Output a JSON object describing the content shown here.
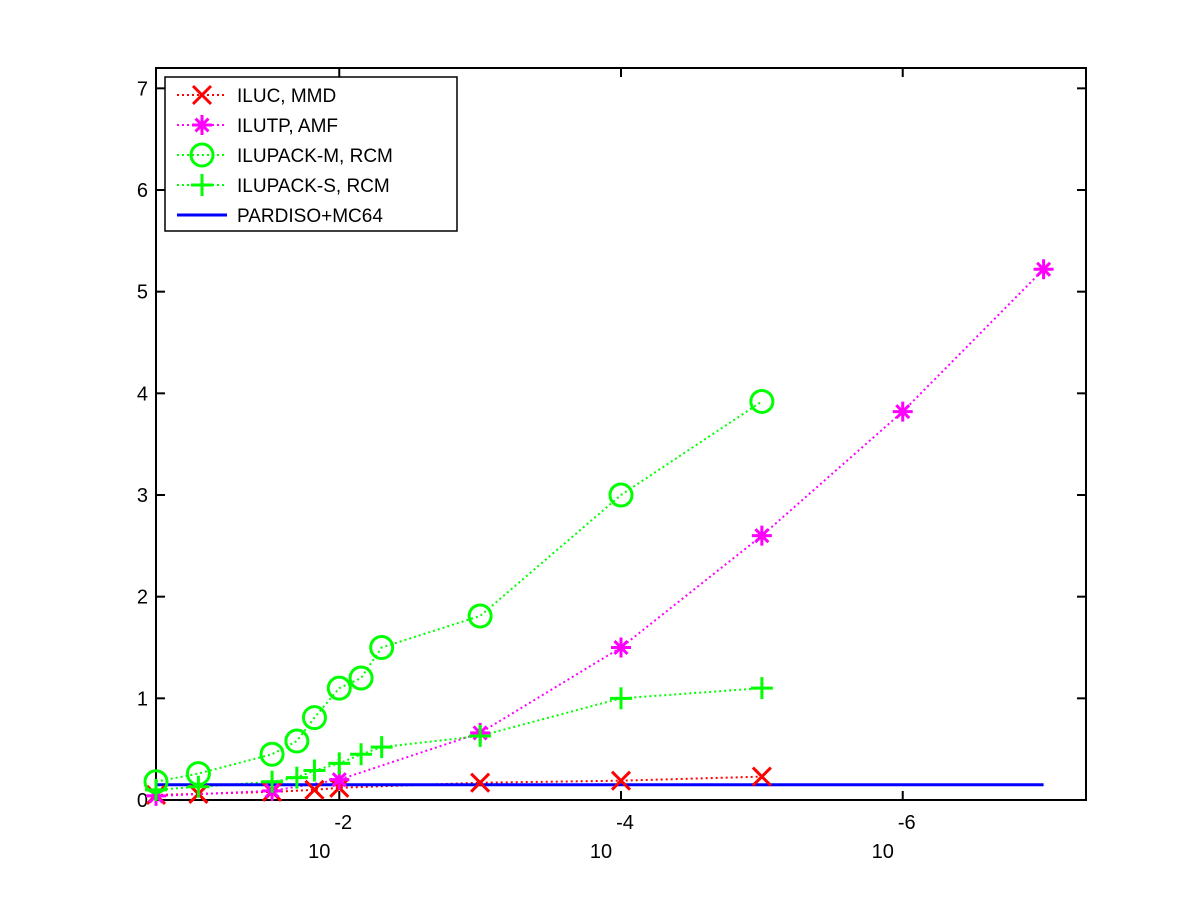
{
  "chart_data": {
    "type": "line",
    "title": "",
    "xlabel": "",
    "ylabel": "",
    "x_scale": "log",
    "x_reversed": true,
    "xlim": [
      0.2,
      5e-08
    ],
    "ylim": [
      0,
      7.2
    ],
    "grid": false,
    "legend_position": "top-left",
    "x_ticks": [
      {
        "value": 0.01,
        "base": "10",
        "exponent": "-2"
      },
      {
        "value": 0.0001,
        "base": "10",
        "exponent": "-4"
      },
      {
        "value": 1e-06,
        "base": "10",
        "exponent": "-6"
      }
    ],
    "y_ticks": [
      "0",
      "1",
      "2",
      "3",
      "4",
      "5",
      "6",
      "7"
    ],
    "series": [
      {
        "name": "ILUC, MMD",
        "color": "#ff0000",
        "marker": "x",
        "line_style": "dotted",
        "points": [
          [
            0.2,
            0.05
          ],
          [
            0.1,
            0.06
          ],
          [
            0.03,
            0.08
          ],
          [
            0.015,
            0.1
          ],
          [
            0.01,
            0.12
          ],
          [
            0.001,
            0.17
          ],
          [
            0.0001,
            0.19
          ],
          [
            1e-05,
            0.23
          ]
        ]
      },
      {
        "name": "ILUTP, AMF",
        "color": "#ff00ff",
        "marker": "asterisk",
        "line_style": "dotted",
        "points": [
          [
            0.2,
            0.04
          ],
          [
            0.03,
            0.09
          ],
          [
            0.01,
            0.2
          ],
          [
            0.001,
            0.66
          ],
          [
            0.0001,
            1.5
          ],
          [
            1e-05,
            2.6
          ],
          [
            1e-06,
            3.82
          ],
          [
            1e-07,
            5.22
          ]
        ]
      },
      {
        "name": "ILUPACK-M, RCM",
        "color": "#00ff00",
        "marker": "circle",
        "line_style": "dotted",
        "points": [
          [
            0.2,
            0.18
          ],
          [
            0.1,
            0.26
          ],
          [
            0.03,
            0.45
          ],
          [
            0.02,
            0.58
          ],
          [
            0.015,
            0.81
          ],
          [
            0.01,
            1.1
          ],
          [
            0.007,
            1.2
          ],
          [
            0.005,
            1.5
          ],
          [
            0.001,
            1.81
          ],
          [
            0.0001,
            3.0
          ],
          [
            1e-05,
            3.92
          ]
        ]
      },
      {
        "name": "ILUPACK-S, RCM",
        "color": "#00ff00",
        "marker": "plus",
        "line_style": "dotted",
        "points": [
          [
            0.2,
            0.1
          ],
          [
            0.1,
            0.13
          ],
          [
            0.03,
            0.18
          ],
          [
            0.02,
            0.22
          ],
          [
            0.015,
            0.29
          ],
          [
            0.01,
            0.36
          ],
          [
            0.007,
            0.45
          ],
          [
            0.005,
            0.52
          ],
          [
            0.001,
            0.63
          ],
          [
            0.0001,
            1.0
          ],
          [
            1e-05,
            1.1
          ]
        ]
      },
      {
        "name": "PARDISO+MC64",
        "color": "#0000ff",
        "marker": "none",
        "line_style": "solid",
        "points": [
          [
            0.2,
            0.15
          ],
          [
            1e-07,
            0.15
          ]
        ]
      }
    ]
  }
}
